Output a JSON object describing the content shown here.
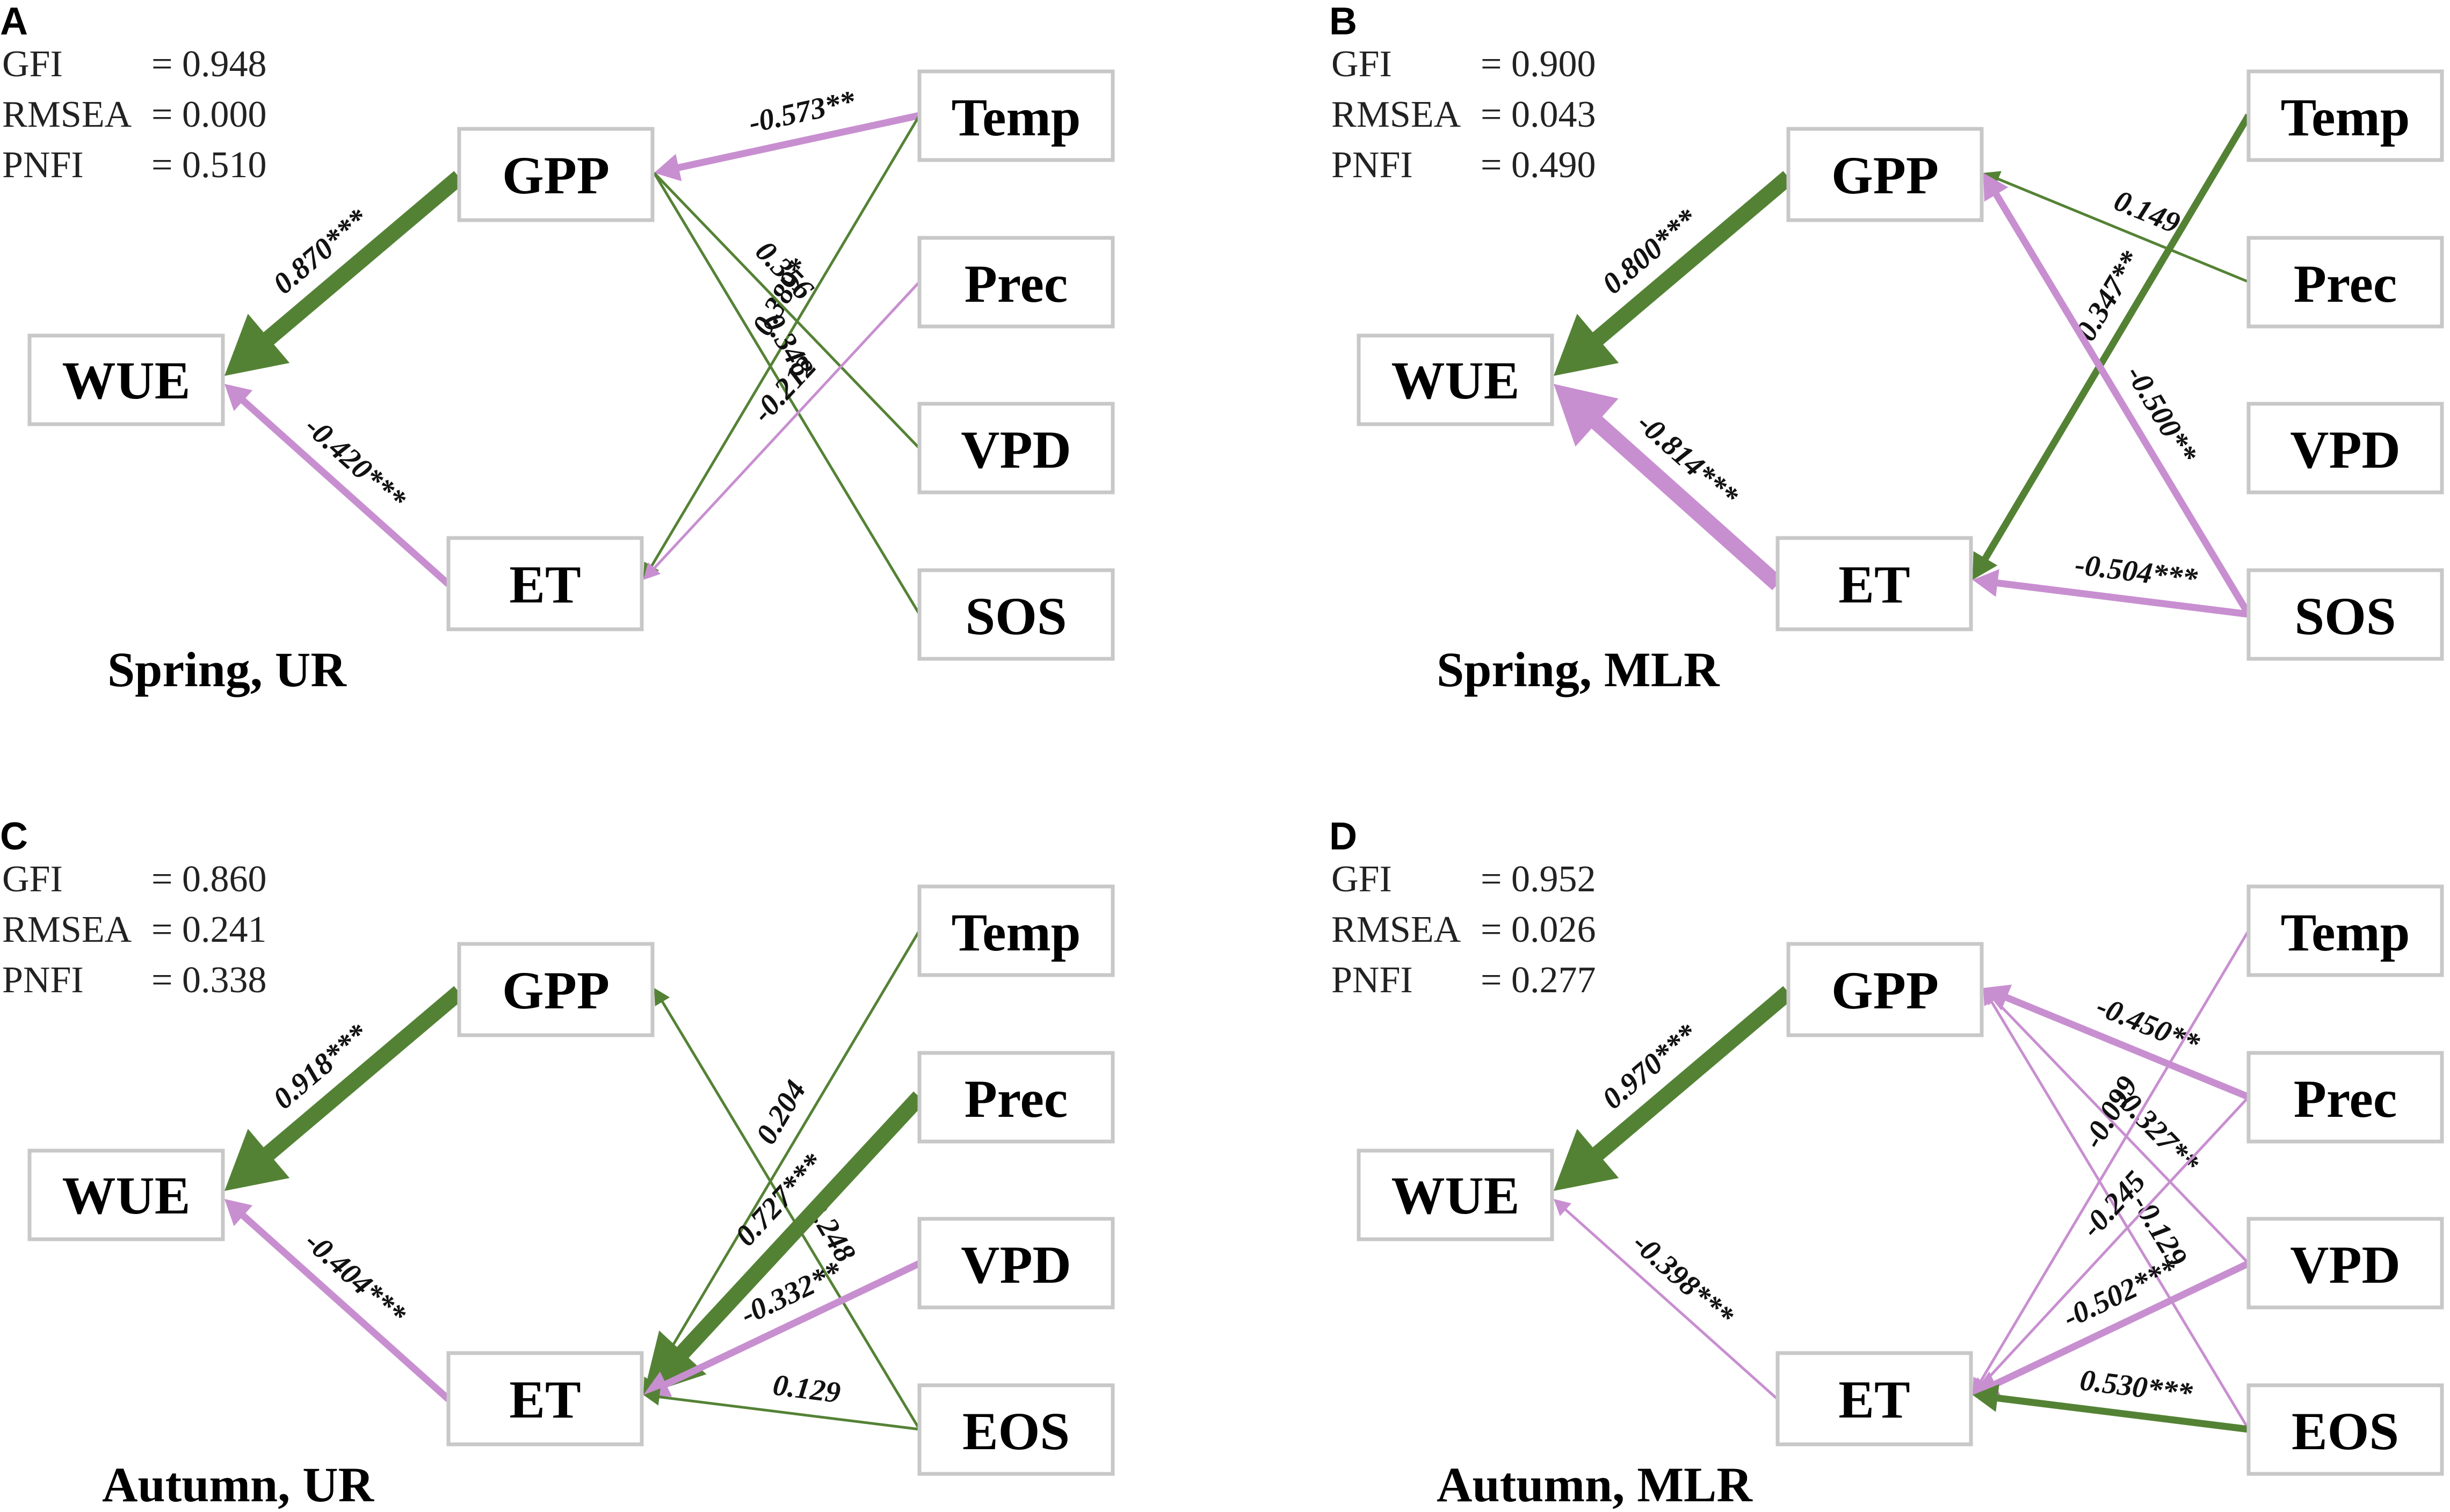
{
  "colors": {
    "positive": "#548235",
    "negative": "#c88fd0"
  },
  "panels": [
    {
      "letter": "A",
      "caption": "Spring, UR",
      "stats": [
        {
          "name": "GFI",
          "value": "= 0.948"
        },
        {
          "name": "RMSEA",
          "value": "= 0.000"
        },
        {
          "name": "PNFI",
          "value": "= 0.510"
        }
      ],
      "nodes": {
        "gpp": "GPP",
        "wue": "WUE",
        "et": "ET",
        "d1": "Temp",
        "d2": "Prec",
        "d3": "VPD",
        "d4": "SOS"
      },
      "paths": [
        {
          "from": "gpp",
          "to": "wue",
          "coef": "0.870***",
          "sign": "positive",
          "weight": 3
        },
        {
          "from": "et",
          "to": "wue",
          "coef": "-0.420***",
          "sign": "negative",
          "weight": 2
        },
        {
          "from": "d1",
          "to": "gpp",
          "coef": "-0.573**",
          "sign": "negative",
          "weight": 2
        },
        {
          "from": "d1",
          "to": "et",
          "coef": "0.389*",
          "sign": "positive",
          "weight": 1
        },
        {
          "from": "gpp",
          "to": "d3",
          "coef": "0.356",
          "sign": "positive",
          "weight": 1
        },
        {
          "from": "gpp",
          "to": "d4",
          "coef": "0.348",
          "sign": "positive",
          "weight": 1
        },
        {
          "from": "d2",
          "to": "et",
          "coef": "-0.212",
          "sign": "negative",
          "weight": 1
        }
      ]
    },
    {
      "letter": "B",
      "caption": "Spring, MLR",
      "stats": [
        {
          "name": "GFI",
          "value": "= 0.900"
        },
        {
          "name": "RMSEA",
          "value": "= 0.043"
        },
        {
          "name": "PNFI",
          "value": "= 0.490"
        }
      ],
      "nodes": {
        "gpp": "GPP",
        "wue": "WUE",
        "et": "ET",
        "d1": "Temp",
        "d2": "Prec",
        "d3": "VPD",
        "d4": "SOS"
      },
      "paths": [
        {
          "from": "gpp",
          "to": "wue",
          "coef": "0.800***",
          "sign": "positive",
          "weight": 3
        },
        {
          "from": "et",
          "to": "wue",
          "coef": "-0.814***",
          "sign": "negative",
          "weight": 3
        },
        {
          "from": "d2",
          "to": "gpp",
          "coef": "0.149",
          "sign": "positive",
          "weight": 1
        },
        {
          "from": "d1",
          "to": "et",
          "coef": "0.347**",
          "sign": "positive",
          "weight": 2
        },
        {
          "from": "d4",
          "to": "gpp",
          "coef": "-0.500**",
          "sign": "negative",
          "weight": 2
        },
        {
          "from": "d4",
          "to": "et",
          "coef": "-0.504***",
          "sign": "negative",
          "weight": 2
        }
      ]
    },
    {
      "letter": "C",
      "caption": "Autumn, UR",
      "stats": [
        {
          "name": "GFI",
          "value": "= 0.860"
        },
        {
          "name": "RMSEA",
          "value": "= 0.241"
        },
        {
          "name": "PNFI",
          "value": "= 0.338"
        }
      ],
      "nodes": {
        "gpp": "GPP",
        "wue": "WUE",
        "et": "ET",
        "d1": "Temp",
        "d2": "Prec",
        "d3": "VPD",
        "d4": "EOS"
      },
      "paths": [
        {
          "from": "gpp",
          "to": "wue",
          "coef": "0.918***",
          "sign": "positive",
          "weight": 3
        },
        {
          "from": "et",
          "to": "wue",
          "coef": "-0.404***",
          "sign": "negative",
          "weight": 2
        },
        {
          "from": "d4",
          "to": "gpp",
          "coef": "0.248",
          "sign": "positive",
          "weight": 1
        },
        {
          "from": "d1",
          "to": "et",
          "coef": "0.204",
          "sign": "positive",
          "weight": 1
        },
        {
          "from": "d2",
          "to": "et",
          "coef": "0.727***",
          "sign": "positive",
          "weight": 3
        },
        {
          "from": "d3",
          "to": "et",
          "coef": "-0.332**",
          "sign": "negative",
          "weight": 2
        },
        {
          "from": "d4",
          "to": "et",
          "coef": "0.129",
          "sign": "positive",
          "weight": 1
        }
      ]
    },
    {
      "letter": "D",
      "caption": "Autumn, MLR",
      "stats": [
        {
          "name": "GFI",
          "value": "= 0.952"
        },
        {
          "name": "RMSEA",
          "value": "= 0.026"
        },
        {
          "name": "PNFI",
          "value": "= 0.277"
        }
      ],
      "nodes": {
        "gpp": "GPP",
        "wue": "WUE",
        "et": "ET",
        "d1": "Temp",
        "d2": "Prec",
        "d3": "VPD",
        "d4": "EOS"
      },
      "paths": [
        {
          "from": "gpp",
          "to": "wue",
          "coef": "0.970***",
          "sign": "positive",
          "weight": 3
        },
        {
          "from": "et",
          "to": "wue",
          "coef": "-0.398***",
          "sign": "negative",
          "weight": 1
        },
        {
          "from": "d2",
          "to": "gpp",
          "coef": "-0.450**",
          "sign": "negative",
          "weight": 2
        },
        {
          "from": "d3",
          "to": "gpp",
          "coef": "-0.327**",
          "sign": "negative",
          "weight": 1
        },
        {
          "from": "d4",
          "to": "gpp",
          "coef": "-0.129",
          "sign": "negative",
          "weight": 1
        },
        {
          "from": "d1",
          "to": "et",
          "coef": "-0.099",
          "sign": "negative",
          "weight": 1
        },
        {
          "from": "d2",
          "to": "et",
          "coef": "-0.245",
          "sign": "negative",
          "weight": 1
        },
        {
          "from": "d3",
          "to": "et",
          "coef": "-0.502***",
          "sign": "negative",
          "weight": 2
        },
        {
          "from": "d4",
          "to": "et",
          "coef": "0.530***",
          "sign": "positive",
          "weight": 2
        }
      ]
    }
  ]
}
